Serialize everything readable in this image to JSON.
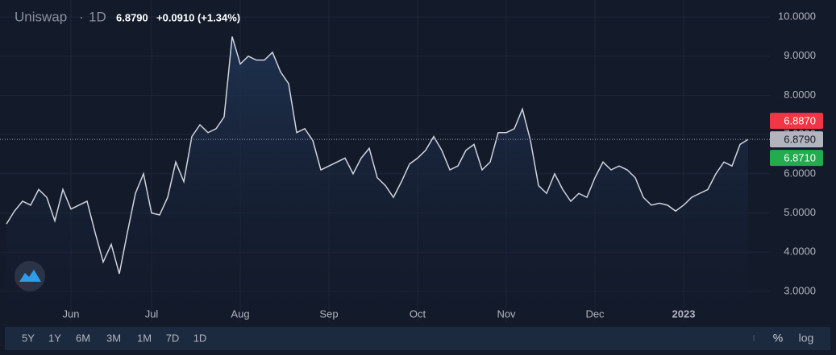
{
  "header": {
    "symbol": "Uniswap",
    "separator": "·",
    "interval": "1D",
    "price": "6.8790",
    "change": "+0.0910 (+1.34%)"
  },
  "chart_data": {
    "type": "line",
    "color": "#d1d4dc",
    "grid": true,
    "area": true,
    "categories": [
      null,
      null,
      null,
      null,
      null,
      null,
      null,
      null,
      "Jun",
      null,
      null,
      null,
      null,
      null,
      null,
      null,
      null,
      null,
      "Jul",
      null,
      null,
      null,
      null,
      null,
      null,
      null,
      null,
      null,
      null,
      "Aug",
      null,
      null,
      null,
      null,
      null,
      null,
      null,
      null,
      null,
      null,
      "Sep",
      null,
      null,
      null,
      null,
      null,
      null,
      null,
      null,
      null,
      null,
      "Oct",
      null,
      null,
      null,
      null,
      null,
      null,
      null,
      null,
      null,
      null,
      "Nov",
      null,
      null,
      null,
      null,
      null,
      null,
      null,
      null,
      null,
      null,
      "Dec",
      null,
      null,
      null,
      null,
      null,
      null,
      null,
      null,
      null,
      null,
      "2023",
      null,
      null,
      null,
      null,
      null,
      null,
      null,
      null
    ],
    "values": [
      4.72,
      5.05,
      5.3,
      5.2,
      5.6,
      5.4,
      4.8,
      5.6,
      5.1,
      5.2,
      5.3,
      4.5,
      3.75,
      4.2,
      3.45,
      4.5,
      5.5,
      6.0,
      5.0,
      4.95,
      5.4,
      6.3,
      5.8,
      6.95,
      7.25,
      7.05,
      7.15,
      7.45,
      9.5,
      8.8,
      9.0,
      8.9,
      8.9,
      9.1,
      8.6,
      8.3,
      7.05,
      7.15,
      6.85,
      6.1,
      6.2,
      6.3,
      6.4,
      6.0,
      6.4,
      6.65,
      5.9,
      5.7,
      5.4,
      5.8,
      6.25,
      6.4,
      6.6,
      6.95,
      6.6,
      6.1,
      6.2,
      6.6,
      6.75,
      6.1,
      6.3,
      7.05,
      7.05,
      7.15,
      7.65,
      6.85,
      5.7,
      5.5,
      6.0,
      5.6,
      5.3,
      5.5,
      5.4,
      5.9,
      6.3,
      6.1,
      6.2,
      6.1,
      5.9,
      5.4,
      5.2,
      5.25,
      5.2,
      5.05,
      5.2,
      5.4,
      5.5,
      5.6,
      6.0,
      6.3,
      6.2,
      6.75,
      6.879
    ],
    "ylim": [
      2.22,
      10.33
    ],
    "yticks": [
      {
        "value": 3,
        "label": "3.0000"
      },
      {
        "value": 4,
        "label": "4.0000"
      },
      {
        "value": 5,
        "label": "5.0000"
      },
      {
        "value": 6,
        "label": "6.0000"
      },
      {
        "value": 7,
        "label": "7.0000"
      },
      {
        "value": 8,
        "label": "8.0000"
      },
      {
        "value": 9,
        "label": "9.0000"
      },
      {
        "value": 10,
        "label": "10.0000"
      }
    ],
    "price_markers": [
      {
        "value": 6.887,
        "label": "6.8870",
        "color": "#f23645"
      },
      {
        "value": 6.879,
        "label": "6.8790",
        "color": "#b2b5be"
      },
      {
        "value": 6.871,
        "label": "6.8710",
        "color": "#22ab4f"
      }
    ]
  },
  "toolbar": {
    "ranges": [
      "5Y",
      "1Y",
      "6M",
      "3M",
      "1M",
      "7D",
      "1D"
    ],
    "percent": "%",
    "log": "log"
  }
}
